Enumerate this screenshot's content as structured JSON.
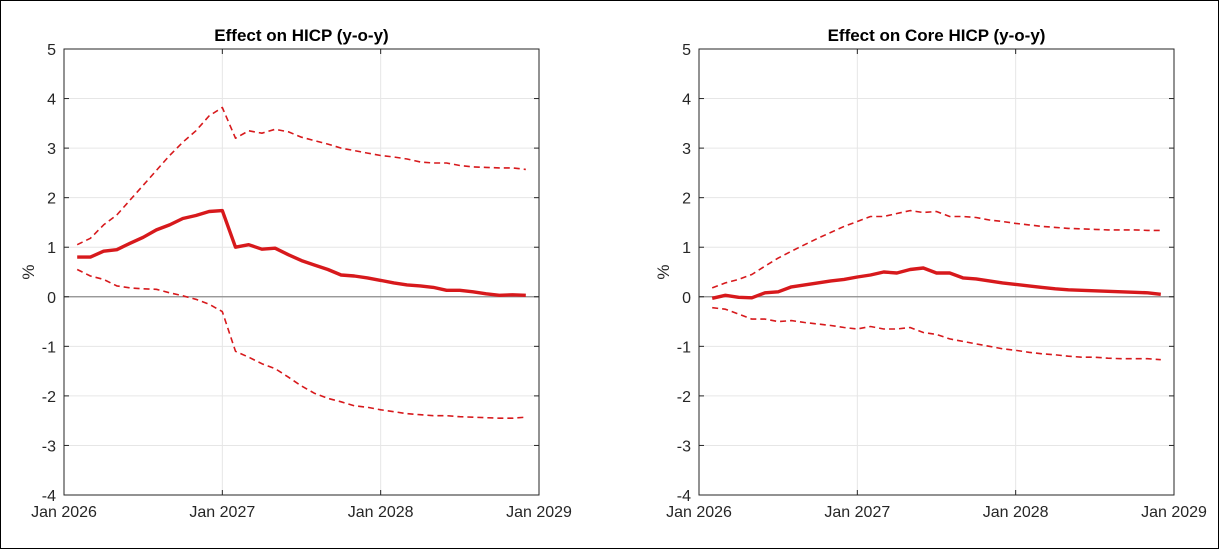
{
  "chart_data": [
    {
      "type": "line",
      "title": "Effect on HICP (y-o-y)",
      "xlabel": "",
      "ylabel": "%",
      "ylim": [
        -4,
        5
      ],
      "yticks": [
        "-4",
        "-3",
        "-2",
        "-1",
        "0",
        "1",
        "2",
        "3",
        "4",
        "5"
      ],
      "xlim": [
        "2026-01",
        "2029-01"
      ],
      "xticks": [
        {
          "date": "2026-01",
          "label": "Jan 2026"
        },
        {
          "date": "2027-01",
          "label": "Jan 2027"
        },
        {
          "date": "2028-01",
          "label": "Jan 2028"
        },
        {
          "date": "2029-01",
          "label": "Jan 2029"
        }
      ],
      "grid": true,
      "zero_line": true,
      "colors": {
        "series": "#d7191c",
        "zero_line": "#8c8c8c",
        "grid": "#e6e6e6"
      },
      "x": [
        "2026-02",
        "2026-03",
        "2026-04",
        "2026-05",
        "2026-06",
        "2026-07",
        "2026-08",
        "2026-09",
        "2026-10",
        "2026-11",
        "2026-12",
        "2027-01",
        "2027-02",
        "2027-03",
        "2027-04",
        "2027-05",
        "2027-06",
        "2027-07",
        "2027-08",
        "2027-09",
        "2027-10",
        "2027-11",
        "2027-12",
        "2028-01",
        "2028-02",
        "2028-03",
        "2028-04",
        "2028-05",
        "2028-06",
        "2028-07",
        "2028-08",
        "2028-09",
        "2028-10",
        "2028-11",
        "2028-12"
      ],
      "series": [
        {
          "style": "solid",
          "values": [
            0.8,
            0.8,
            0.92,
            0.95,
            1.08,
            1.2,
            1.35,
            1.45,
            1.58,
            1.64,
            1.72,
            1.74,
            1.0,
            1.05,
            0.96,
            0.98,
            0.85,
            0.73,
            0.64,
            0.55,
            0.44,
            0.42,
            0.38,
            0.33,
            0.28,
            0.24,
            0.22,
            0.19,
            0.13,
            0.13,
            0.1,
            0.06,
            0.03,
            0.04,
            0.03
          ]
        },
        {
          "style": "dashed",
          "values": [
            1.05,
            1.18,
            1.45,
            1.65,
            1.95,
            2.25,
            2.55,
            2.85,
            3.12,
            3.35,
            3.65,
            3.82,
            3.2,
            3.35,
            3.3,
            3.38,
            3.33,
            3.22,
            3.15,
            3.08,
            3.0,
            2.95,
            2.9,
            2.85,
            2.82,
            2.78,
            2.72,
            2.7,
            2.7,
            2.65,
            2.62,
            2.61,
            2.6,
            2.6,
            2.57
          ]
        },
        {
          "style": "dashed",
          "values": [
            0.55,
            0.42,
            0.35,
            0.22,
            0.18,
            0.16,
            0.15,
            0.08,
            0.02,
            -0.05,
            -0.15,
            -0.3,
            -1.1,
            -1.22,
            -1.35,
            -1.45,
            -1.62,
            -1.8,
            -1.95,
            -2.05,
            -2.12,
            -2.2,
            -2.23,
            -2.28,
            -2.32,
            -2.36,
            -2.38,
            -2.4,
            -2.4,
            -2.42,
            -2.43,
            -2.44,
            -2.45,
            -2.45,
            -2.43
          ]
        }
      ]
    },
    {
      "type": "line",
      "title": "Effect on Core HICP (y-o-y)",
      "xlabel": "",
      "ylabel": "%",
      "ylim": [
        -4,
        5
      ],
      "yticks": [
        "-4",
        "-3",
        "-2",
        "-1",
        "0",
        "1",
        "2",
        "3",
        "4",
        "5"
      ],
      "xlim": [
        "2026-01",
        "2029-01"
      ],
      "xticks": [
        {
          "date": "2026-01",
          "label": "Jan 2026"
        },
        {
          "date": "2027-01",
          "label": "Jan 2027"
        },
        {
          "date": "2028-01",
          "label": "Jan 2028"
        },
        {
          "date": "2029-01",
          "label": "Jan 2029"
        }
      ],
      "grid": true,
      "zero_line": true,
      "colors": {
        "series": "#d7191c",
        "zero_line": "#8c8c8c",
        "grid": "#e6e6e6"
      },
      "x": [
        "2026-02",
        "2026-03",
        "2026-04",
        "2026-05",
        "2026-06",
        "2026-07",
        "2026-08",
        "2026-09",
        "2026-10",
        "2026-11",
        "2026-12",
        "2027-01",
        "2027-02",
        "2027-03",
        "2027-04",
        "2027-05",
        "2027-06",
        "2027-07",
        "2027-08",
        "2027-09",
        "2027-10",
        "2027-11",
        "2027-12",
        "2028-01",
        "2028-02",
        "2028-03",
        "2028-04",
        "2028-05",
        "2028-06",
        "2028-07",
        "2028-08",
        "2028-09",
        "2028-10",
        "2028-11",
        "2028-12"
      ],
      "series": [
        {
          "style": "solid",
          "values": [
            -0.03,
            0.03,
            -0.01,
            -0.02,
            0.08,
            0.1,
            0.2,
            0.24,
            0.28,
            0.32,
            0.35,
            0.4,
            0.44,
            0.5,
            0.48,
            0.55,
            0.58,
            0.48,
            0.48,
            0.38,
            0.36,
            0.32,
            0.28,
            0.25,
            0.22,
            0.19,
            0.16,
            0.14,
            0.13,
            0.12,
            0.11,
            0.1,
            0.09,
            0.08,
            0.05
          ]
        },
        {
          "style": "dashed",
          "values": [
            0.18,
            0.28,
            0.35,
            0.45,
            0.62,
            0.78,
            0.92,
            1.05,
            1.18,
            1.3,
            1.42,
            1.52,
            1.62,
            1.62,
            1.68,
            1.74,
            1.7,
            1.72,
            1.62,
            1.62,
            1.6,
            1.55,
            1.52,
            1.48,
            1.45,
            1.42,
            1.4,
            1.38,
            1.37,
            1.36,
            1.35,
            1.35,
            1.35,
            1.34,
            1.34
          ]
        },
        {
          "style": "dashed",
          "values": [
            -0.22,
            -0.25,
            -0.35,
            -0.45,
            -0.45,
            -0.5,
            -0.48,
            -0.52,
            -0.55,
            -0.58,
            -0.62,
            -0.65,
            -0.6,
            -0.65,
            -0.65,
            -0.62,
            -0.72,
            -0.76,
            -0.85,
            -0.9,
            -0.95,
            -1.0,
            -1.05,
            -1.08,
            -1.12,
            -1.15,
            -1.17,
            -1.2,
            -1.22,
            -1.22,
            -1.24,
            -1.25,
            -1.25,
            -1.25,
            -1.27
          ]
        }
      ]
    }
  ]
}
